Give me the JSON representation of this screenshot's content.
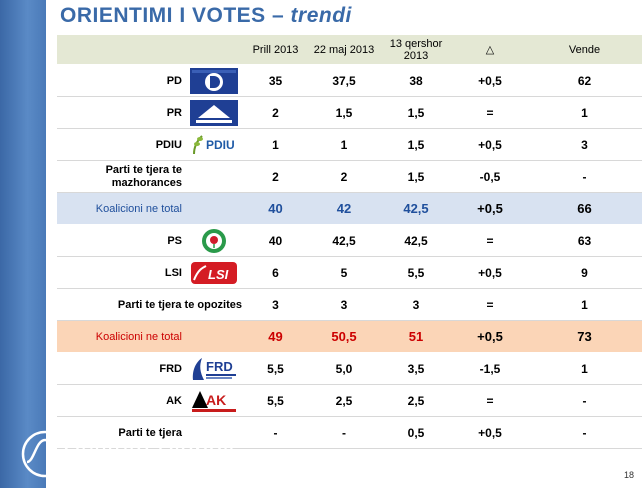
{
  "title": {
    "main": "ORIENTIMI I VOTES –",
    "italic": "trendi"
  },
  "chart_data": {
    "type": "table",
    "columns": [
      "",
      "",
      "Prill 2013",
      "22 maj 2013",
      "13 qershor 2013",
      "△",
      "Vende"
    ],
    "header": {
      "c1": "Prill 2013",
      "c2": "22 maj 2013",
      "c3": "13 qershor 2013",
      "delta": "△",
      "seats": "Vende"
    },
    "rows": {
      "pd": {
        "label": "PD",
        "prill": "35",
        "maj": "37,5",
        "qershor": "38",
        "delta": "+0,5",
        "seats": "62"
      },
      "pr": {
        "label": "PR",
        "prill": "2",
        "maj": "1,5",
        "qershor": "1,5",
        "delta": "=",
        "seats": "1"
      },
      "pdiu": {
        "label": "PDIU",
        "prill": "1",
        "maj": "1",
        "qershor": "1,5",
        "delta": "+0,5",
        "seats": "3"
      },
      "maj_other": {
        "label": "Parti te tjera te mazhorances",
        "prill": "2",
        "maj": "2",
        "qershor": "1,5",
        "delta": "-0,5",
        "seats": "-"
      },
      "maj_total": {
        "label": "Koalicioni ne total",
        "prill": "40",
        "maj": "42",
        "qershor": "42,5",
        "delta": "+0,5",
        "seats": "66"
      },
      "ps": {
        "label": "PS",
        "prill": "40",
        "maj": "42,5",
        "qershor": "42,5",
        "delta": "=",
        "seats": "63"
      },
      "lsi": {
        "label": "LSI",
        "prill": "6",
        "maj": "5",
        "qershor": "5,5",
        "delta": "+0,5",
        "seats": "9"
      },
      "opp_other": {
        "label": "Parti te tjera te opozites",
        "prill": "3",
        "maj": "3",
        "qershor": "3",
        "delta": "=",
        "seats": "1"
      },
      "opp_total": {
        "label": "Koalicioni ne total",
        "prill": "49",
        "maj": "50,5",
        "qershor": "51",
        "delta": "+0,5",
        "seats": "73"
      },
      "frd": {
        "label": "FRD",
        "prill": "5,5",
        "maj": "5,0",
        "qershor": "3,5",
        "delta": "-1,5",
        "seats": "1"
      },
      "ak": {
        "label": "AK",
        "prill": "5,5",
        "maj": "2,5",
        "qershor": "2,5",
        "delta": "=",
        "seats": "-"
      },
      "others": {
        "label": "Parti te tjera",
        "prill": "-",
        "maj": "-",
        "qershor": "0,5",
        "delta": "+0,5",
        "seats": "-"
      }
    }
  },
  "logos": {
    "pdiu_text": "PDIU",
    "lsi_text": "LSI",
    "frd_text": "FRD",
    "ak_text": "AK"
  },
  "brand": "Istituto Piepoli",
  "page_number": "18",
  "colors": {
    "band": "#4a7ab8",
    "title": "#3a6aa8",
    "header_bg": "#e4e8d4",
    "majority_bg": "#d8e2f1",
    "opposition_bg": "#fbd5b7",
    "positive": "#2d8a2d",
    "negative": "#d00000"
  }
}
